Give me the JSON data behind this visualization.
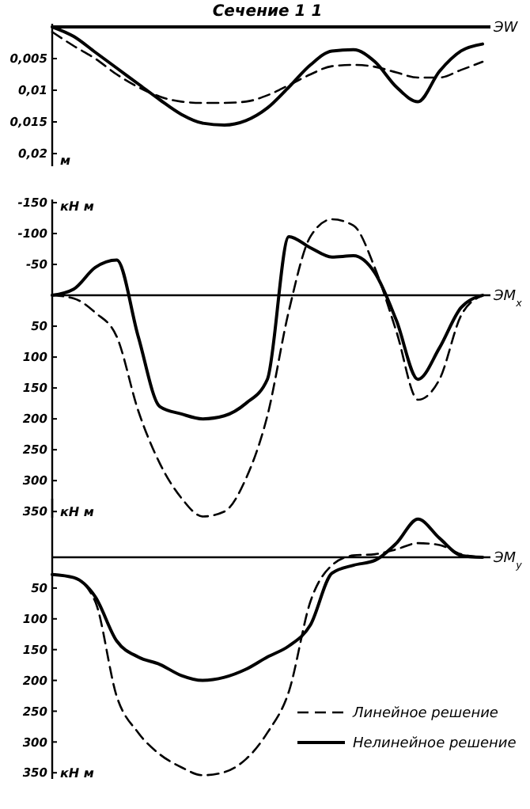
{
  "chart_data": [
    {
      "type": "line",
      "title": "Сечение 1 1",
      "xlabel": "ЭW",
      "annotations": [
        "м"
      ],
      "categories": [
        null,
        null,
        null,
        null,
        null,
        null,
        null,
        null,
        null,
        null,
        null,
        null,
        null,
        null,
        null,
        null,
        null,
        null,
        null,
        null,
        null
      ],
      "ylim": [
        0.022,
        0
      ],
      "yticks": [
        {
          "value": 0.005,
          "label": "0,005"
        },
        {
          "value": 0.01,
          "label": "0,01"
        },
        {
          "value": 0.015,
          "label": "0,015"
        },
        {
          "value": 0.02,
          "label": "0,02"
        }
      ],
      "tick_labels": "y",
      "series": [
        {
          "color": "#000000",
          "line_style": "dashed",
          "values": [
            0.0008,
            0.003,
            0.005,
            0.0075,
            0.0095,
            0.011,
            0.0118,
            0.012,
            0.012,
            0.0118,
            0.0108,
            0.0092,
            0.0075,
            0.0062,
            0.006,
            0.0063,
            0.0072,
            0.008,
            0.008,
            0.0068,
            0.0055
          ]
        },
        {
          "color": "#000000",
          "line_style": "solid",
          "values": [
            0,
            0.0015,
            0.004,
            0.0065,
            0.009,
            0.0115,
            0.0138,
            0.0152,
            0.0155,
            0.0148,
            0.0128,
            0.0095,
            0.006,
            0.0038,
            0.0036,
            0.0055,
            0.0095,
            0.0118,
            0.007,
            0.0038,
            0.0027
          ]
        }
      ]
    },
    {
      "type": "line",
      "xlabel": "ЭM$_{x}$",
      "ylabel": "кН м",
      "annotations": [
        "кН м"
      ],
      "categories": [
        null,
        null,
        null,
        null,
        null,
        null,
        null,
        null,
        null,
        null,
        null,
        null,
        null,
        null,
        null,
        null,
        null,
        null,
        null,
        null,
        null
      ],
      "ylim": [
        360,
        -150
      ],
      "yticks": [
        -150,
        -100,
        -50,
        50,
        100,
        150,
        200,
        250,
        300,
        350
      ],
      "tick_labels": "y",
      "series": [
        {
          "color": "#000000",
          "line_style": "dashed",
          "values": [
            0,
            5,
            28,
            67,
            187,
            272,
            328,
            358,
            350,
            297,
            195,
            25,
            -95,
            -123,
            -113,
            -44,
            59,
            169,
            136,
            33,
            0
          ]
        },
        {
          "color": "#000000",
          "line_style": "solid",
          "values": [
            0,
            -10,
            -45,
            -57,
            67,
            180,
            192,
            200,
            195,
            175,
            136,
            -95,
            -77,
            -62,
            -64,
            -36,
            41,
            136,
            85,
            20,
            0
          ]
        }
      ]
    },
    {
      "type": "line",
      "xlabel": "ЭM$_{y}$",
      "annotations": [
        "кН м"
      ],
      "legend": "bottom right",
      "categories": [
        null,
        null,
        null,
        null,
        null,
        null,
        null,
        null,
        null,
        null,
        null,
        null,
        null,
        null,
        null,
        null,
        null,
        null,
        null,
        null,
        null
      ],
      "ylim": [
        360,
        -90
      ],
      "yticks": [
        50,
        100,
        150,
        200,
        250,
        300,
        350
      ],
      "tick_labels": "y",
      "series": [
        {
          "name": "Линейное решение",
          "color": "#000000",
          "line_style": "dashed",
          "values": [
            28,
            33,
            72,
            226,
            285,
            320,
            341,
            354,
            349,
            328,
            285,
            218,
            72,
            13,
            -3,
            -5,
            -13,
            -23,
            -20,
            -5,
            0
          ]
        },
        {
          "name": "Нелинейное решение",
          "color": "#000000",
          "line_style": "solid",
          "values": [
            28,
            33,
            64,
            136,
            162,
            174,
            192,
            200,
            195,
            182,
            162,
            144,
            110,
            26,
            13,
            5,
            -23,
            -62,
            -31,
            -3,
            0
          ]
        }
      ]
    }
  ]
}
